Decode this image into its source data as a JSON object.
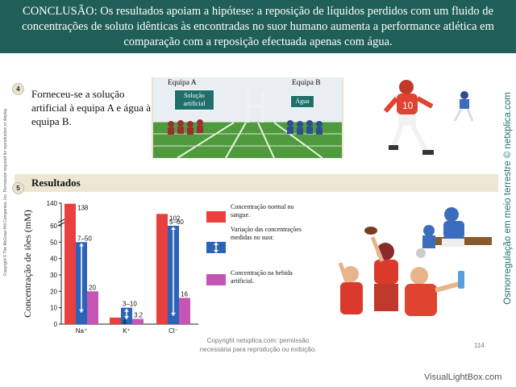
{
  "header": {
    "text": "CONCLUSÃO: Os resultados apoiam a hipótese: a reposição de líquidos perdidos com um fluido de concentrações de soluto idênticas às encontradas no suor humano aumenta a performance atlética em comparação com a reposição efectuada apenas com água."
  },
  "side": {
    "left": "Copyright © The McGraw-Hill Companies, Inc. Permission required for reproduction or display.",
    "right": "Osmorregulação em meio terrestre © netxplica.com"
  },
  "step4": {
    "number": "4",
    "text": "Forneceu-se a solução artificial à equipa A e água à equipa B.",
    "team_a": "Equipa A",
    "team_b": "Equipa B",
    "tag_a": "Solução artificial",
    "tag_b": "Água"
  },
  "step5": {
    "number": "5",
    "title": "Resultados"
  },
  "chart_data": {
    "type": "bar",
    "ylabel": "Concentração de iões (mM)",
    "categories": [
      "Na⁺",
      "K⁺",
      "Cl⁻"
    ],
    "yticks": [
      "0",
      "10",
      "20",
      "30",
      "40",
      "50",
      "60",
      "140"
    ],
    "axis_break": true,
    "series": [
      {
        "name": "Concentração normal no sangue.",
        "color": "#e8403f",
        "values": [
          138,
          4,
          102
        ],
        "labels": [
          "138",
          "4",
          "102"
        ]
      },
      {
        "name": "Variação das concentrações medidas no suor.",
        "color": "#2a63b8",
        "ranges": [
          [
            7,
            50
          ],
          [
            3,
            10
          ],
          [
            5,
            60
          ]
        ],
        "labels": [
          "7–50",
          "3–10",
          "5–60"
        ]
      },
      {
        "name": "Concentração na bebida artificial.",
        "color": "#c455b5",
        "values": [
          20,
          3.2,
          16
        ],
        "labels": [
          "20",
          "3.2",
          "16"
        ]
      }
    ]
  },
  "legend": {
    "blood": "Concentração normal no sangue.",
    "sweat": "Variação das concentrações medidas no suor.",
    "drink": "Concentração na bebida artificial."
  },
  "footer": {
    "line1": "Copyright netxplica.com: permissão",
    "line2": "necessária para reprodução ou exibição.",
    "page": "114",
    "watermark": "VisualLightBox.com"
  }
}
